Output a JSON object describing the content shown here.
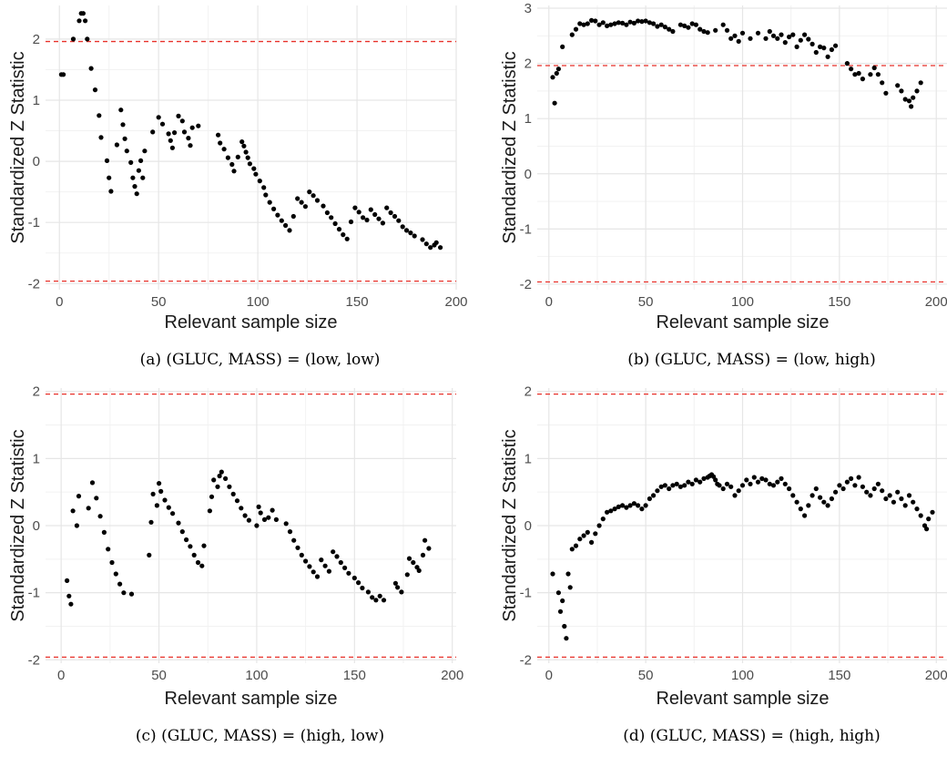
{
  "chart_data": [
    {
      "type": "scatter",
      "ylabel": "Standardized Z Statistic",
      "xlabel": "Relevant sample size",
      "caption": "(a) (GLUC, MASS) = (low, low)",
      "xlim": [
        -7,
        200
      ],
      "ylim": [
        -2.1,
        2.55
      ],
      "xticks": [
        0,
        50,
        100,
        150,
        200
      ],
      "yticks": [
        -2,
        -1,
        0,
        1,
        2
      ],
      "grid": true,
      "reference_lines": [
        1.96,
        -1.96
      ],
      "reference_line_color": "#e8312a",
      "point_color": "#000000",
      "x": [
        1,
        2,
        7,
        10,
        11,
        12,
        13,
        14,
        16,
        18,
        20,
        21,
        24,
        25,
        26,
        29,
        31,
        32,
        33,
        34,
        36,
        37,
        38,
        39,
        40,
        41,
        42,
        43,
        47,
        50,
        52,
        55,
        56,
        57,
        58,
        60,
        62,
        63,
        65,
        66,
        67,
        70,
        80,
        81,
        83,
        85,
        87,
        88,
        90,
        92,
        93,
        94,
        95,
        96,
        98,
        99,
        101,
        103,
        104,
        106,
        108,
        110,
        112,
        114,
        116,
        118,
        120,
        122,
        124,
        126,
        128,
        130,
        133,
        135,
        137,
        139,
        141,
        143,
        145,
        147,
        149,
        151,
        153,
        155,
        157,
        159,
        161,
        163,
        165,
        167,
        169,
        171,
        173,
        175,
        177,
        179,
        183,
        185,
        187,
        189,
        190,
        192
      ],
      "y": [
        1.42,
        1.42,
        2.0,
        2.3,
        2.42,
        2.42,
        2.3,
        2.0,
        1.52,
        1.17,
        0.75,
        0.39,
        0.01,
        -0.27,
        -0.49,
        0.27,
        0.84,
        0.6,
        0.37,
        0.17,
        -0.02,
        -0.27,
        -0.41,
        -0.53,
        -0.15,
        0.01,
        -0.27,
        0.17,
        0.48,
        0.72,
        0.61,
        0.45,
        0.34,
        0.22,
        0.47,
        0.74,
        0.66,
        0.48,
        0.38,
        0.26,
        0.55,
        0.58,
        0.43,
        0.3,
        0.2,
        0.06,
        -0.05,
        -0.16,
        0.07,
        0.32,
        0.25,
        0.15,
        0.06,
        -0.04,
        -0.12,
        -0.21,
        -0.32,
        -0.43,
        -0.55,
        -0.67,
        -0.78,
        -0.88,
        -0.97,
        -1.05,
        -1.13,
        -0.9,
        -0.61,
        -0.67,
        -0.74,
        -0.5,
        -0.56,
        -0.64,
        -0.73,
        -0.84,
        -0.92,
        -1.02,
        -1.11,
        -1.2,
        -1.27,
        -0.99,
        -0.76,
        -0.83,
        -0.92,
        -0.96,
        -0.79,
        -0.87,
        -0.94,
        -1.01,
        -0.76,
        -0.84,
        -0.9,
        -0.97,
        -1.07,
        -1.13,
        -1.17,
        -1.22,
        -1.28,
        -1.35,
        -1.41,
        -1.37,
        -1.33,
        -1.41
      ]
    },
    {
      "type": "scatter",
      "ylabel": "Standardized Z Statistic",
      "xlabel": "Relevant sample size",
      "caption": "(b) (GLUC, MASS) = (low, high)",
      "xlim": [
        -6,
        206
      ],
      "ylim": [
        -2.1,
        3.05
      ],
      "xticks": [
        0,
        50,
        100,
        150,
        200
      ],
      "yticks": [
        -2,
        -1,
        0,
        1,
        2,
        3
      ],
      "grid": true,
      "reference_lines": [
        1.96,
        -1.96
      ],
      "reference_line_color": "#e8312a",
      "point_color": "#000000",
      "x": [
        2,
        3,
        4,
        5,
        7,
        12,
        14,
        16,
        18,
        20,
        22,
        24,
        26,
        28,
        30,
        32,
        34,
        36,
        38,
        40,
        42,
        44,
        46,
        48,
        50,
        52,
        54,
        56,
        58,
        60,
        62,
        64,
        68,
        70,
        72,
        74,
        76,
        78,
        80,
        82,
        86,
        90,
        92,
        94,
        96,
        98,
        100,
        104,
        108,
        112,
        114,
        116,
        118,
        120,
        122,
        124,
        126,
        128,
        130,
        132,
        134,
        136,
        138,
        140,
        142,
        144,
        146,
        148,
        154,
        156,
        158,
        160,
        162,
        166,
        168,
        170,
        172,
        174,
        180,
        182,
        184,
        186,
        187,
        188,
        190,
        192
      ],
      "y": [
        1.75,
        1.28,
        1.82,
        1.9,
        2.3,
        2.52,
        2.62,
        2.72,
        2.7,
        2.72,
        2.78,
        2.77,
        2.7,
        2.74,
        2.68,
        2.7,
        2.72,
        2.74,
        2.73,
        2.7,
        2.75,
        2.73,
        2.77,
        2.76,
        2.77,
        2.74,
        2.72,
        2.67,
        2.7,
        2.66,
        2.62,
        2.58,
        2.7,
        2.68,
        2.65,
        2.72,
        2.7,
        2.62,
        2.58,
        2.56,
        2.6,
        2.7,
        2.6,
        2.45,
        2.5,
        2.4,
        2.55,
        2.45,
        2.55,
        2.45,
        2.58,
        2.5,
        2.45,
        2.52,
        2.38,
        2.48,
        2.52,
        2.3,
        2.42,
        2.52,
        2.44,
        2.35,
        2.2,
        2.3,
        2.28,
        2.12,
        2.25,
        2.32,
        2.0,
        1.9,
        1.8,
        1.82,
        1.72,
        1.8,
        1.92,
        1.8,
        1.65,
        1.46,
        1.6,
        1.5,
        1.35,
        1.32,
        1.22,
        1.38,
        1.5,
        1.65
      ]
    },
    {
      "type": "scatter",
      "ylabel": "Standardized Z Statistic",
      "xlabel": "Relevant sample size",
      "caption": "(c) (GLUC, MASS) = (high, low)",
      "xlim": [
        -8,
        202
      ],
      "ylim": [
        -2.05,
        2.05
      ],
      "xticks": [
        0,
        50,
        100,
        150,
        200
      ],
      "yticks": [
        -2,
        -1,
        0,
        1,
        2
      ],
      "grid": true,
      "reference_lines": [
        1.96,
        -1.96
      ],
      "reference_line_color": "#e8312a",
      "point_color": "#000000",
      "x": [
        3,
        4,
        5,
        6,
        8,
        9,
        14,
        16,
        18,
        20,
        22,
        24,
        26,
        28,
        30,
        32,
        36,
        45,
        46,
        47,
        49,
        50,
        51,
        53,
        55,
        57,
        60,
        62,
        64,
        66,
        68,
        70,
        72,
        73,
        76,
        77,
        78,
        80,
        81,
        82,
        84,
        86,
        88,
        90,
        92,
        94,
        96,
        100,
        101,
        102,
        104,
        106,
        108,
        110,
        115,
        117,
        119,
        121,
        123,
        125,
        127,
        129,
        131,
        133,
        135,
        137,
        139,
        141,
        143,
        145,
        147,
        150,
        152,
        154,
        157,
        159,
        161,
        163,
        165,
        171,
        172,
        174,
        177,
        178,
        180,
        182,
        183,
        185,
        186,
        188
      ],
      "y": [
        -0.82,
        -1.05,
        -1.17,
        0.22,
        0.0,
        0.44,
        0.26,
        0.64,
        0.41,
        0.14,
        -0.1,
        -0.35,
        -0.55,
        -0.72,
        -0.87,
        -1.0,
        -1.02,
        -0.44,
        0.05,
        0.47,
        0.3,
        0.63,
        0.51,
        0.38,
        0.27,
        0.18,
        0.04,
        -0.09,
        -0.21,
        -0.31,
        -0.44,
        -0.55,
        -0.6,
        -0.3,
        0.22,
        0.43,
        0.68,
        0.58,
        0.74,
        0.8,
        0.7,
        0.58,
        0.47,
        0.37,
        0.26,
        0.15,
        0.08,
        0.0,
        0.28,
        0.19,
        0.09,
        0.12,
        0.23,
        0.09,
        0.03,
        -0.09,
        -0.22,
        -0.33,
        -0.44,
        -0.53,
        -0.61,
        -0.69,
        -0.76,
        -0.51,
        -0.6,
        -0.68,
        -0.39,
        -0.46,
        -0.55,
        -0.63,
        -0.71,
        -0.78,
        -0.85,
        -0.93,
        -0.99,
        -1.07,
        -1.11,
        -1.05,
        -1.11,
        -0.86,
        -0.92,
        -0.99,
        -0.73,
        -0.49,
        -0.55,
        -0.62,
        -0.67,
        -0.44,
        -0.22,
        -0.34
      ]
    },
    {
      "type": "scatter",
      "ylabel": "Standardized Z Statistic",
      "xlabel": "Relevant sample size",
      "caption": "(d) (GLUC, MASS) = (high, high)",
      "xlim": [
        -6,
        206
      ],
      "ylim": [
        -2.05,
        2.05
      ],
      "xticks": [
        0,
        50,
        100,
        150,
        200
      ],
      "yticks": [
        -2,
        -1,
        0,
        1,
        2
      ],
      "grid": true,
      "reference_lines": [
        1.96,
        -1.96
      ],
      "reference_line_color": "#e8312a",
      "point_color": "#000000",
      "x": [
        2,
        5,
        6,
        7,
        8,
        9,
        10,
        11,
        12,
        14,
        16,
        18,
        20,
        22,
        24,
        26,
        28,
        30,
        32,
        34,
        36,
        38,
        40,
        42,
        44,
        46,
        48,
        50,
        52,
        54,
        56,
        58,
        60,
        62,
        64,
        66,
        68,
        70,
        72,
        74,
        76,
        78,
        80,
        82,
        83,
        84,
        85,
        86,
        87,
        88,
        90,
        92,
        94,
        96,
        98,
        100,
        102,
        104,
        106,
        108,
        110,
        112,
        114,
        116,
        118,
        120,
        122,
        124,
        126,
        128,
        130,
        132,
        134,
        136,
        138,
        140,
        142,
        144,
        146,
        148,
        150,
        152,
        154,
        156,
        158,
        160,
        162,
        164,
        166,
        168,
        170,
        172,
        174,
        176,
        178,
        180,
        182,
        184,
        186,
        188,
        190,
        192,
        194,
        195,
        196,
        198
      ],
      "y": [
        -0.72,
        -1.0,
        -1.28,
        -1.12,
        -1.5,
        -1.68,
        -0.72,
        -0.92,
        -0.35,
        -0.3,
        -0.2,
        -0.15,
        -0.1,
        -0.25,
        -0.12,
        0.0,
        0.1,
        0.2,
        0.22,
        0.25,
        0.28,
        0.3,
        0.27,
        0.3,
        0.33,
        0.3,
        0.25,
        0.3,
        0.4,
        0.45,
        0.52,
        0.58,
        0.6,
        0.55,
        0.6,
        0.62,
        0.58,
        0.6,
        0.65,
        0.62,
        0.68,
        0.65,
        0.7,
        0.72,
        0.74,
        0.76,
        0.73,
        0.68,
        0.62,
        0.6,
        0.55,
        0.62,
        0.58,
        0.45,
        0.52,
        0.6,
        0.68,
        0.62,
        0.72,
        0.65,
        0.7,
        0.68,
        0.62,
        0.6,
        0.65,
        0.7,
        0.62,
        0.55,
        0.45,
        0.35,
        0.25,
        0.15,
        0.3,
        0.45,
        0.55,
        0.42,
        0.35,
        0.3,
        0.4,
        0.5,
        0.6,
        0.55,
        0.65,
        0.7,
        0.6,
        0.72,
        0.58,
        0.5,
        0.45,
        0.55,
        0.62,
        0.52,
        0.4,
        0.45,
        0.35,
        0.5,
        0.4,
        0.3,
        0.45,
        0.35,
        0.25,
        0.15,
        0.0,
        -0.05,
        0.1,
        0.2
      ]
    }
  ]
}
